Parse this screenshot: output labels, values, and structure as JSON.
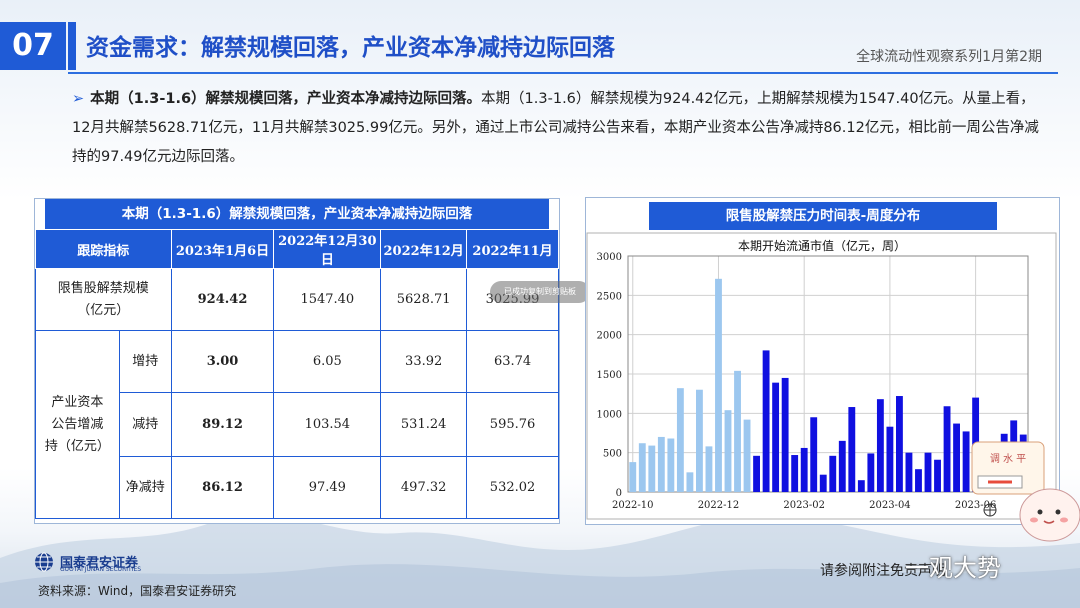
{
  "header": {
    "page_number": "07",
    "title": "资金需求：解禁规模回落，产业资本净减持边际回落",
    "series": "全球流动性观察系列1月第2期"
  },
  "summary": {
    "bold_lead": "本期（1.3-1.6）解禁规模回落，产业资本净减持边际回落。",
    "body": "本期（1.3-1.6）解禁规模为924.42亿元，上期解禁规模为1547.40亿元。从量上看，12月共解禁5628.71亿元，11月共解禁3025.99亿元。另外，通过上市公司减持公告来看，本期产业资本公告净减持86.12亿元，相比前一周公告净减持的97.49亿元边际回落。"
  },
  "table": {
    "title": "本期（1.3-1.6）解禁规模回落，产业资本净减持边际回落",
    "headers": [
      "跟踪指标",
      "2023年1月6日",
      "2022年12月30日",
      "2022年12月",
      "2022年11月"
    ],
    "lockup_label_1": "限售股解禁规模",
    "lockup_label_2": "（亿元）",
    "lockup_values": [
      "924.42",
      "1547.40",
      "5628.71",
      "3025.99"
    ],
    "group_label_1": "产业资本",
    "group_label_2": "公告增减",
    "group_label_3": "持（亿元）",
    "rows": [
      {
        "label": "增持",
        "values": [
          "3.00",
          "6.05",
          "33.92",
          "63.74"
        ]
      },
      {
        "label": "减持",
        "values": [
          "89.12",
          "103.54",
          "531.24",
          "595.76"
        ]
      },
      {
        "label": "净减持",
        "values": [
          "86.12",
          "97.49",
          "497.32",
          "532.02"
        ]
      }
    ]
  },
  "chart_box": {
    "header": "限售股解禁压力时间表-周度分布"
  },
  "chart_data": {
    "type": "bar",
    "title": "本期开始流通市值（亿元，周）",
    "ylim": [
      0,
      3000
    ],
    "yticks": [
      "0",
      "500",
      "1000",
      "1500",
      "2000",
      "2500",
      "3000"
    ],
    "xticks": [
      {
        "label": "2022-10",
        "index": 0
      },
      {
        "label": "2022-12",
        "index": 9
      },
      {
        "label": "2023-02",
        "index": 18
      },
      {
        "label": "2023-04",
        "index": 27
      },
      {
        "label": "2023-06",
        "index": 36
      },
      {
        "label": "2023-0",
        "index": 45
      }
    ],
    "grid": true,
    "series": [
      {
        "color": "#9cc7ef",
        "values": [
          380,
          620,
          590,
          700,
          680,
          1320,
          250,
          1300,
          580,
          2710,
          1040,
          1540,
          920
        ]
      },
      {
        "color": "#1010e0",
        "values": [
          460,
          1800,
          1390,
          1450,
          470,
          560,
          950,
          220,
          460,
          650,
          1080,
          150,
          490,
          1180,
          830,
          1220,
          500,
          290,
          500,
          410,
          1090,
          870,
          770,
          1200,
          640,
          300,
          740,
          910,
          730
        ]
      }
    ],
    "offsets": [
      0,
      13
    ]
  },
  "overlays": {
    "toast": "已成功复制到剪贴板",
    "mascot_text": "调 水 平"
  },
  "footer": {
    "company": "国泰君安证券",
    "company_en": "GUOTAI JUNAN SECURITIES",
    "source": "资料来源：Wind，国泰君安证券研究",
    "disclaimer": "请参阅附注免责声明",
    "watermark": "一观大势"
  }
}
